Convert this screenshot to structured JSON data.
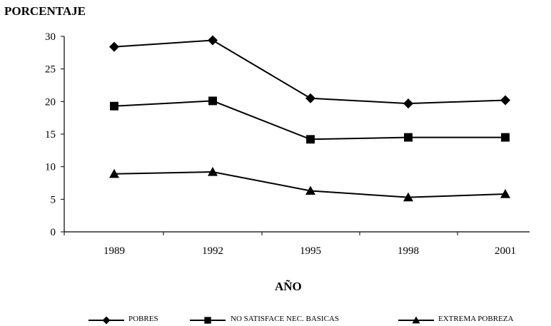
{
  "chart_data": {
    "type": "line",
    "x": [
      "1989",
      "1992",
      "1995",
      "1998",
      "2001"
    ],
    "series": [
      {
        "name": "POBRES",
        "marker": "diamond",
        "values": [
          28.4,
          29.4,
          20.5,
          19.7,
          20.2
        ]
      },
      {
        "name": "NO SATISFACE NEC. BASICAS",
        "marker": "square",
        "values": [
          19.3,
          20.1,
          14.2,
          14.5,
          14.5
        ]
      },
      {
        "name": "EXTREMA POBREZA",
        "marker": "triangle",
        "values": [
          8.9,
          9.2,
          6.3,
          5.3,
          5.8
        ]
      }
    ],
    "ylabel": "PORCENTAJE",
    "xlabel": "AÑO",
    "ylim": [
      0,
      30
    ],
    "yticks": [
      0,
      5,
      10,
      15,
      20,
      25,
      30
    ],
    "grid": false,
    "legend_position": "bottom",
    "line_color": "#000000"
  }
}
